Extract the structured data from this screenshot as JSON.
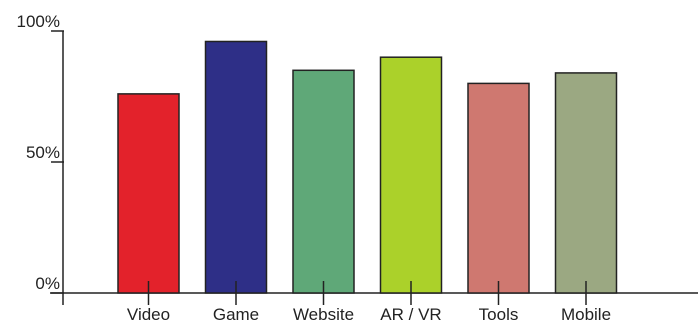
{
  "chart_data": {
    "type": "bar",
    "title": "",
    "xlabel": "",
    "ylabel": "",
    "categories": [
      "Video",
      "Game",
      "Website",
      "AR / VR",
      "Tools",
      "Mobile"
    ],
    "values": [
      76,
      96,
      85,
      90,
      80,
      84
    ],
    "ylim": [
      0,
      100
    ],
    "y_ticks": [
      {
        "value": 0,
        "label": "0%"
      },
      {
        "value": 50,
        "label": "50%"
      },
      {
        "value": 100,
        "label": "100%"
      }
    ],
    "colors": [
      "#e3222b",
      "#2e2f87",
      "#5fa878",
      "#abd12a",
      "#cf7870",
      "#9ba882"
    ],
    "grid": false,
    "legend": "none"
  }
}
